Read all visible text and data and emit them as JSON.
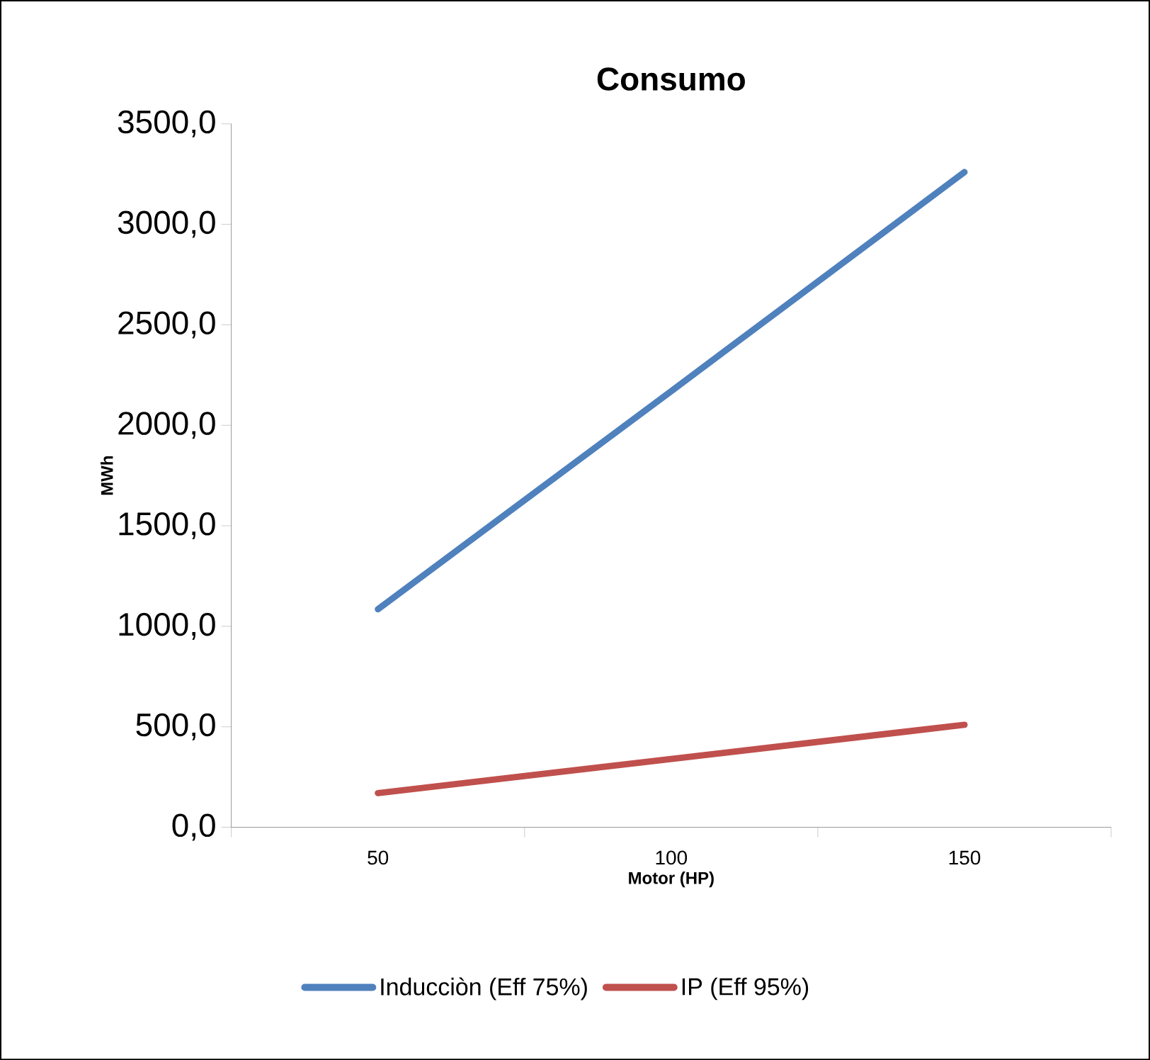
{
  "chart_data": {
    "type": "line",
    "title": "Consumo",
    "xlabel": "Motor (HP)",
    "ylabel": "MWh",
    "categories": [
      "50",
      "100",
      "150"
    ],
    "series": [
      {
        "name": "Inducciòn (Eff 75%)",
        "color": "#4f81bd",
        "values": [
          1085,
          2170,
          3260
        ]
      },
      {
        "name": "IP (Eff 95%)",
        "color": "#c0504d",
        "values": [
          170,
          340,
          510
        ]
      }
    ],
    "ylim": [
      0,
      3500
    ],
    "yticks": [
      {
        "value": 0,
        "label": "0,0"
      },
      {
        "value": 500,
        "label": "500,0"
      },
      {
        "value": 1000,
        "label": "1000,0"
      },
      {
        "value": 1500,
        "label": "1500,0"
      },
      {
        "value": 2000,
        "label": "2000,0"
      },
      {
        "value": 2500,
        "label": "2500,0"
      },
      {
        "value": 3000,
        "label": "3000,0"
      },
      {
        "value": 3500,
        "label": "3500,0"
      }
    ],
    "legend": "bottom",
    "grid": false,
    "marker": "none",
    "line_style": "solid"
  }
}
